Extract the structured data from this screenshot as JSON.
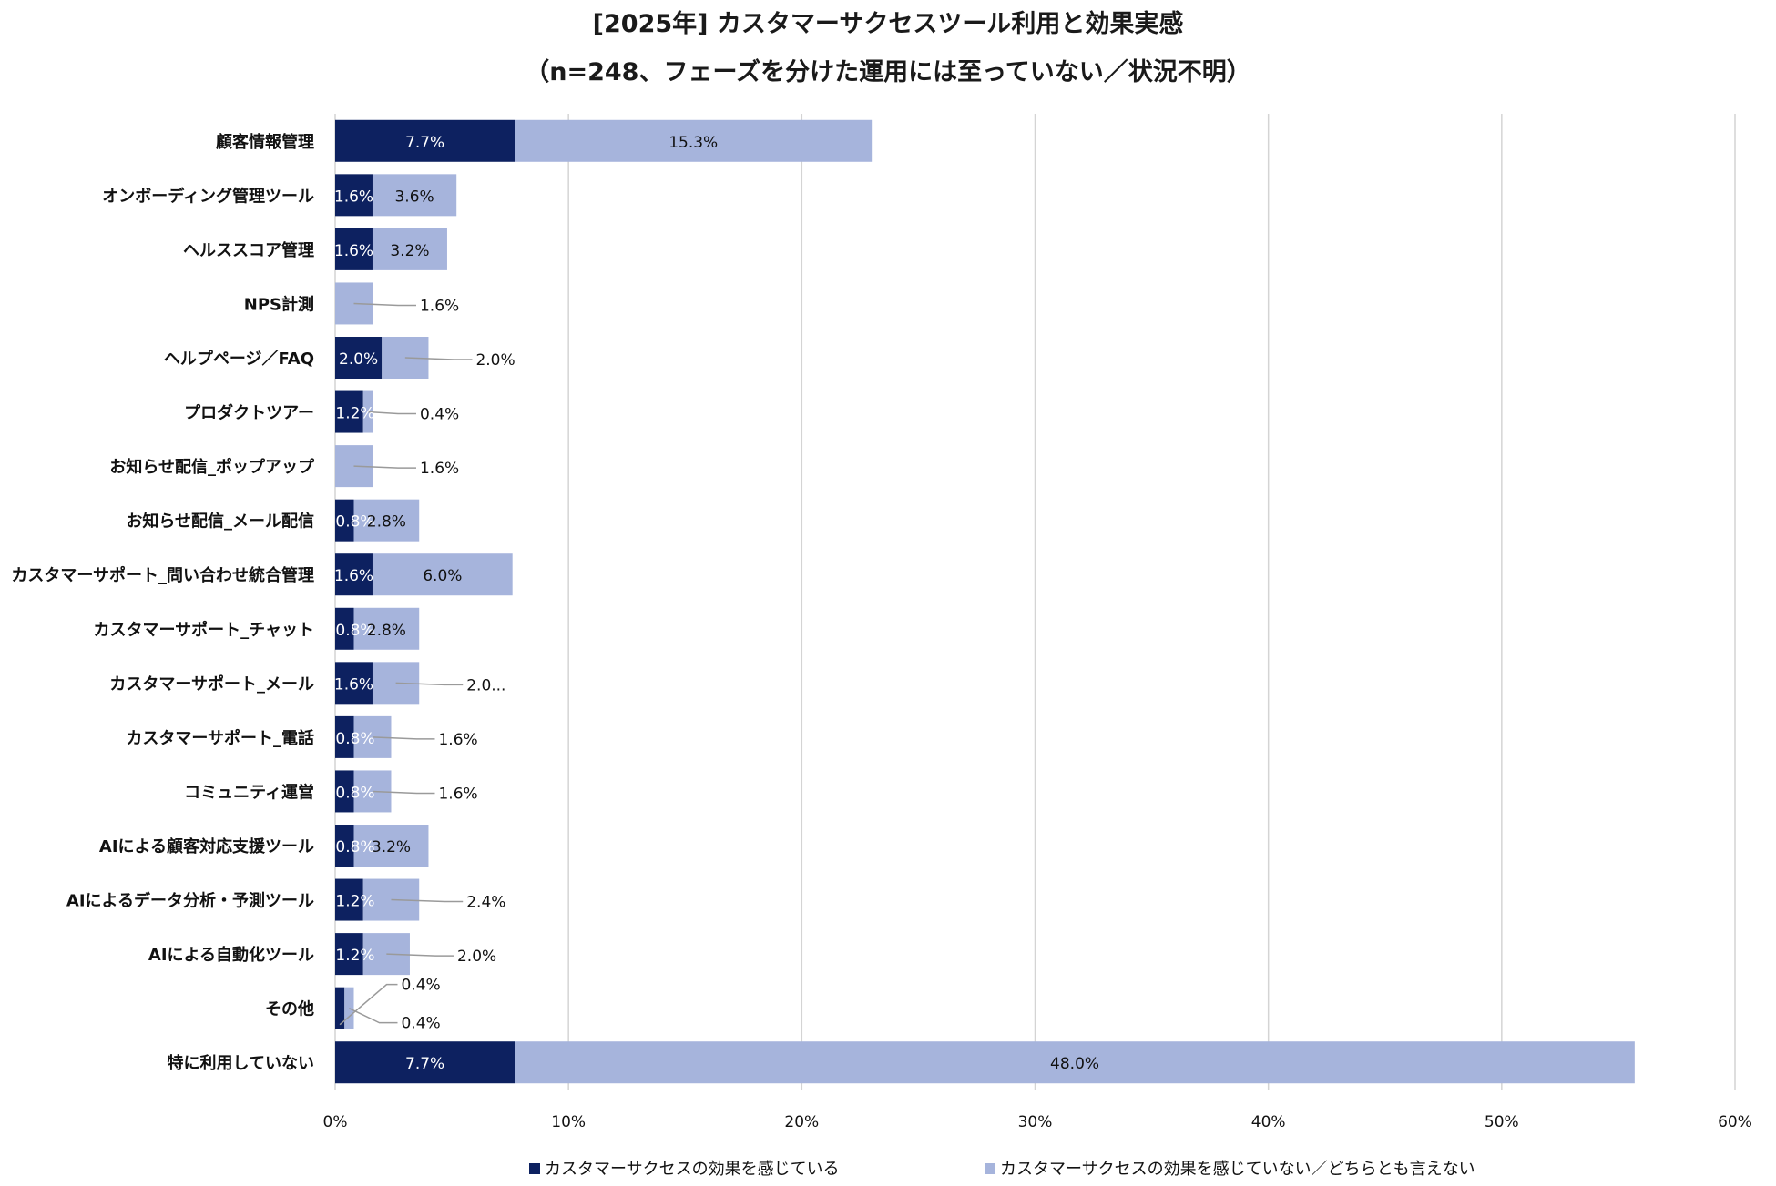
{
  "chart_data": {
    "type": "bar",
    "orientation": "horizontal",
    "stacked": true,
    "title": "[2025年]  カスタマーサクセスツール利用と効果実感",
    "subtitle": "（n=248、フェーズを分けた運用には至っていない／状況不明）",
    "categories": [
      "顧客情報管理",
      "オンボーディング管理ツール",
      "ヘルススコア管理",
      "NPS計測",
      "ヘルプページ／FAQ",
      "プロダクトツアー",
      "お知らせ配信_ポップアップ",
      "お知らせ配信_メール配信",
      "カスタマーサポート_問い合わせ統合管理",
      "カスタマーサポート_チャット",
      "カスタマーサポート_メール",
      "カスタマーサポート_電話",
      "コミュニティ運営",
      "AIによる顧客対応支援ツール",
      "AIによるデータ分析・予測ツール",
      "AIによる自動化ツール",
      "その他",
      "特に利用していない"
    ],
    "series": [
      {
        "name": "カスタマーサクセスの効果を感じている",
        "color": "#0d2160",
        "values": [
          7.7,
          1.6,
          1.6,
          0,
          2.0,
          1.2,
          0,
          0.8,
          1.6,
          0.8,
          1.6,
          0.8,
          0.8,
          0.8,
          1.2,
          1.2,
          0.4,
          7.7
        ],
        "labels": [
          "7.7%",
          "1.6%",
          "1.6%",
          "",
          "2.0%",
          "1.2%",
          "",
          "0.8%",
          "1.6%",
          "0.8%",
          "1.6%",
          "0.8%",
          "0.8%",
          "0.8%",
          "1.2%",
          "1.2%",
          "0.4%",
          "7.7%"
        ]
      },
      {
        "name": "カスタマーサクセスの効果を感じていない／どちらとも言えない",
        "color": "#a6b4dc",
        "values": [
          15.3,
          3.6,
          3.2,
          1.6,
          2.0,
          0.4,
          1.6,
          2.8,
          6.0,
          2.8,
          2.0,
          1.6,
          1.6,
          3.2,
          2.4,
          2.0,
          0.4,
          48.0
        ],
        "labels": [
          "15.3%",
          "3.6%",
          "3.2%",
          "1.6%",
          "2.0%",
          "0.4%",
          "1.6%",
          "2.8%",
          "6.0%",
          "2.8%",
          "2.0...",
          "1.6%",
          "1.6%",
          "3.2%",
          "2.4%",
          "2.0%",
          "0.4%",
          "48.0%"
        ]
      }
    ],
    "xlim": [
      0,
      60
    ],
    "x_ticks": [
      0,
      10,
      20,
      30,
      40,
      50,
      60
    ],
    "x_tick_labels": [
      "0%",
      "10%",
      "20%",
      "30%",
      "40%",
      "50%",
      "60%"
    ],
    "grid": true,
    "legend_position": "bottom"
  }
}
